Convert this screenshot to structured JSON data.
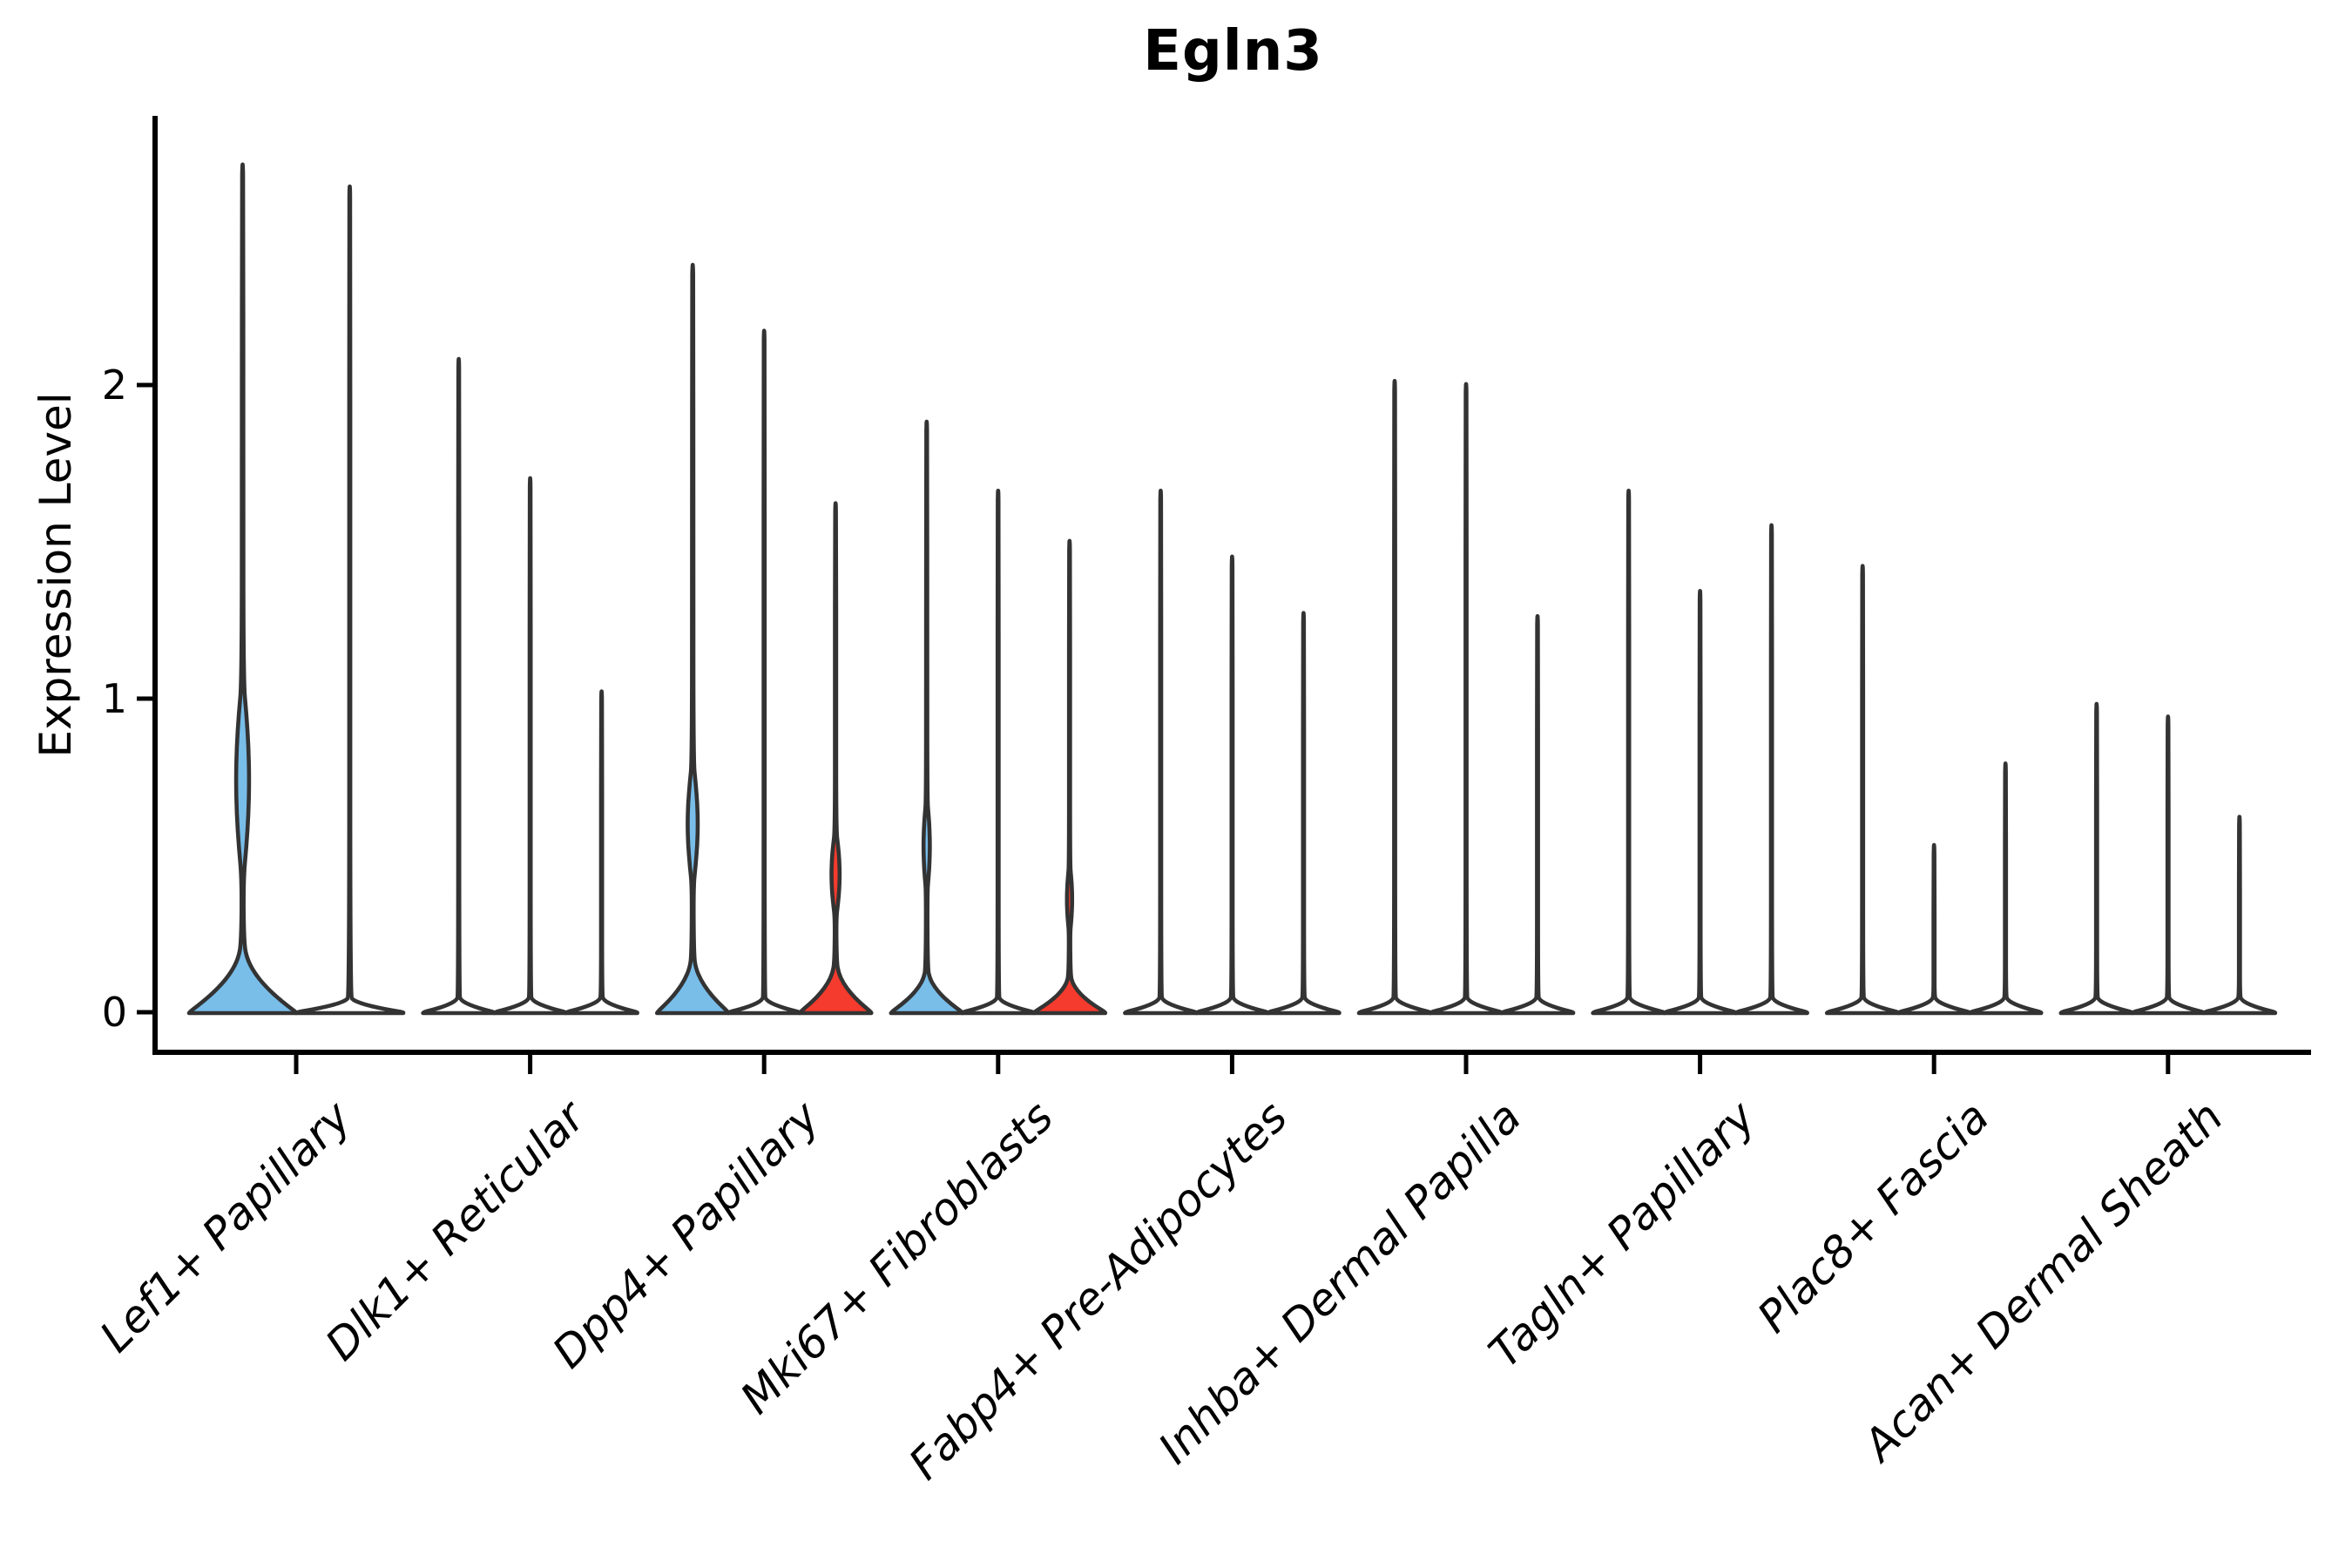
{
  "title": "Egln3",
  "axes": {
    "ylabel": "Expression Level",
    "yticks": [
      "0",
      "1",
      "2"
    ],
    "xlabels": [
      "Lef1+ Papillary",
      "Dlk1+ Reticular",
      "Dpp4+ Papillary",
      "Mki67+ Fibroblasts",
      "Fabp4+ Pre-Adipocytes",
      "Inhba+ Dermal Papilla",
      "Tagln+ Papillary",
      "Plac8+ Fascia",
      "Acan+ Dermal Sheath"
    ],
    "xlabel": ""
  },
  "colors": {
    "blue": "#79bde9",
    "red": "#f43b2d",
    "white": "#ffffff",
    "outline": "#333333",
    "axis": "#000000"
  },
  "chart_data": {
    "type": "violin",
    "title": "Egln3",
    "ylabel": "Expression Level",
    "ylim": [
      -0.13,
      2.85
    ],
    "yticks": [
      0,
      1,
      2
    ],
    "grid": false,
    "legend": false,
    "categories": [
      "Lef1+ Papillary",
      "Dlk1+ Reticular",
      "Dpp4+ Papillary",
      "Mki67+ Fibroblasts",
      "Fabp4+ Pre-Adipocytes",
      "Inhba+ Dermal Papilla",
      "Tagln+ Papillary",
      "Plac8+ Fascia",
      "Acan+ Dermal Sheath"
    ],
    "groups": [
      {
        "category": "Lef1+ Papillary",
        "violins": [
          {
            "fill": "blue",
            "max": 2.7,
            "base_bump": 0.22,
            "stem_hw": 1.6,
            "bulge": {
              "center": 0.74,
              "span": 0.32,
              "hw": 7.6
            }
          },
          {
            "fill": "white",
            "max": 2.63,
            "base_bump": 0.05,
            "stem_hw": 0.6,
            "bulge": null
          }
        ]
      },
      {
        "category": "Dlk1+ Reticular",
        "violins": [
          {
            "fill": "white",
            "max": 2.08,
            "base_bump": 0.05,
            "stem_hw": 0.6,
            "bulge": null
          },
          {
            "fill": "white",
            "max": 1.7,
            "base_bump": 0.05,
            "stem_hw": 0.6,
            "bulge": null
          },
          {
            "fill": "white",
            "max": 1.02,
            "base_bump": 0.05,
            "stem_hw": 0.6,
            "bulge": null
          }
        ]
      },
      {
        "category": "Dpp4+ Papillary",
        "violins": [
          {
            "fill": "blue",
            "max": 2.38,
            "base_bump": 0.18,
            "stem_hw": 1.4,
            "bulge": {
              "center": 0.6,
              "span": 0.2,
              "hw": 5.9
            }
          },
          {
            "fill": "white",
            "max": 2.17,
            "base_bump": 0.05,
            "stem_hw": 0.6,
            "bulge": null
          },
          {
            "fill": "red",
            "max": 1.62,
            "base_bump": 0.16,
            "stem_hw": 1.3,
            "bulge": {
              "center": 0.44,
              "span": 0.14,
              "hw": 4.8
            }
          }
        ]
      },
      {
        "category": "Mki67+ Fibroblasts",
        "violins": [
          {
            "fill": "blue",
            "max": 1.88,
            "base_bump": 0.14,
            "stem_hw": 1.2,
            "bulge": {
              "center": 0.53,
              "span": 0.15,
              "hw": 3.7
            }
          },
          {
            "fill": "white",
            "max": 1.66,
            "base_bump": 0.05,
            "stem_hw": 0.6,
            "bulge": null
          },
          {
            "fill": "red",
            "max": 1.5,
            "base_bump": 0.12,
            "stem_hw": 1.1,
            "bulge": {
              "center": 0.36,
              "span": 0.11,
              "hw": 3.0
            }
          }
        ]
      },
      {
        "category": "Fabp4+ Pre-Adipocytes",
        "violins": [
          {
            "fill": "white",
            "max": 1.66,
            "base_bump": 0.05,
            "stem_hw": 0.6,
            "bulge": null
          },
          {
            "fill": "white",
            "max": 1.45,
            "base_bump": 0.05,
            "stem_hw": 0.6,
            "bulge": null
          },
          {
            "fill": "white",
            "max": 1.27,
            "base_bump": 0.05,
            "stem_hw": 0.6,
            "bulge": null
          }
        ]
      },
      {
        "category": "Inhba+ Dermal Papilla",
        "violins": [
          {
            "fill": "white",
            "max": 2.01,
            "base_bump": 0.05,
            "stem_hw": 0.6,
            "bulge": null
          },
          {
            "fill": "white",
            "max": 2.0,
            "base_bump": 0.05,
            "stem_hw": 0.6,
            "bulge": null
          },
          {
            "fill": "white",
            "max": 1.26,
            "base_bump": 0.05,
            "stem_hw": 0.6,
            "bulge": null
          }
        ]
      },
      {
        "category": "Tagln+ Papillary",
        "violins": [
          {
            "fill": "white",
            "max": 1.66,
            "base_bump": 0.05,
            "stem_hw": 0.6,
            "bulge": null
          },
          {
            "fill": "white",
            "max": 1.34,
            "base_bump": 0.05,
            "stem_hw": 0.6,
            "bulge": null
          },
          {
            "fill": "white",
            "max": 1.55,
            "base_bump": 0.05,
            "stem_hw": 0.6,
            "bulge": null
          }
        ]
      },
      {
        "category": "Plac8+ Fascia",
        "violins": [
          {
            "fill": "white",
            "max": 1.42,
            "base_bump": 0.05,
            "stem_hw": 0.6,
            "bulge": null
          },
          {
            "fill": "white",
            "max": 0.53,
            "base_bump": 0.05,
            "stem_hw": 0.6,
            "bulge": null
          },
          {
            "fill": "white",
            "max": 0.79,
            "base_bump": 0.05,
            "stem_hw": 0.6,
            "bulge": null
          }
        ]
      },
      {
        "category": "Acan+ Dermal Sheath",
        "violins": [
          {
            "fill": "white",
            "max": 0.98,
            "base_bump": 0.05,
            "stem_hw": 0.6,
            "bulge": null
          },
          {
            "fill": "white",
            "max": 0.94,
            "base_bump": 0.05,
            "stem_hw": 0.6,
            "bulge": null
          },
          {
            "fill": "white",
            "max": 0.62,
            "base_bump": 0.05,
            "stem_hw": 0.6,
            "bulge": null
          }
        ]
      }
    ]
  }
}
